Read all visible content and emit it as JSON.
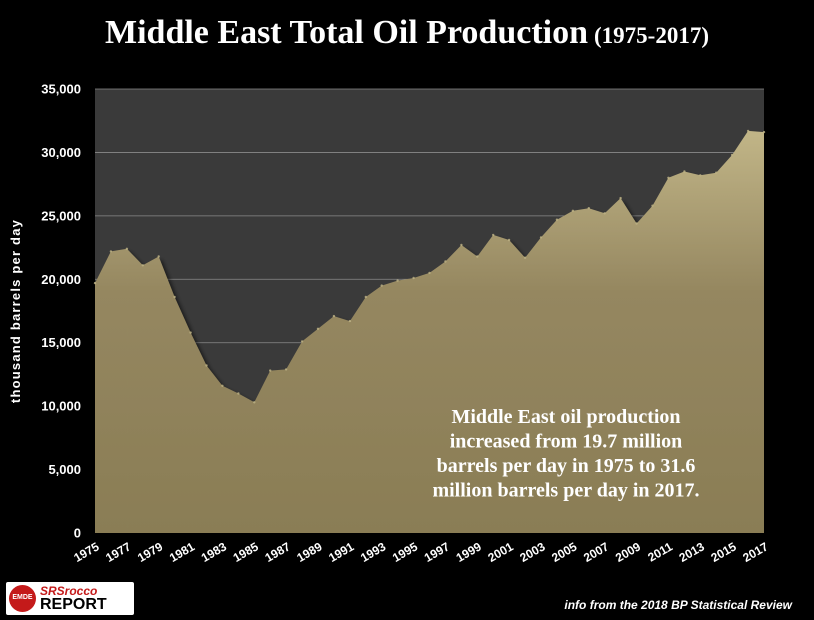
{
  "title": {
    "main": "Middle East Total Oil Production",
    "sub": "(1975-2017)"
  },
  "logo": {
    "badge": "EMDE",
    "top": "SRSrocco",
    "bottom": "REPORT"
  },
  "source_note": "info from the 2018 BP Statistical Review",
  "colors": {
    "background": "#000000",
    "plot_area": "#3a3a3a",
    "area_fill": "#8d8058",
    "area_top": "#c1b587",
    "gridline": "#8a8a8a"
  },
  "chart_data": {
    "type": "area",
    "title": "Middle East Total Oil Production",
    "ylabel": "thousand barrels per day",
    "xlabel": "",
    "ylim": [
      0,
      35000
    ],
    "yticks": [
      0,
      5000,
      10000,
      15000,
      20000,
      25000,
      30000,
      35000
    ],
    "ytick_labels": [
      "0",
      "5,000",
      "10,000",
      "15,000",
      "20,000",
      "25,000",
      "30,000",
      "35,000"
    ],
    "xtick_labels": [
      "1975",
      "1977",
      "1979",
      "1981",
      "1983",
      "1985",
      "1987",
      "1989",
      "1991",
      "1993",
      "1995",
      "1997",
      "1999",
      "2001",
      "2003",
      "2005",
      "2007",
      "2009",
      "2011",
      "2013",
      "2015",
      "2017"
    ],
    "grid": true,
    "annotation": [
      "Middle East oil production",
      "increased from 19.7 million",
      "barrels per day in 1975 to 31.6",
      "million barrels per day in 2017."
    ],
    "x": [
      1975,
      1976,
      1977,
      1978,
      1979,
      1980,
      1981,
      1982,
      1983,
      1984,
      1985,
      1986,
      1987,
      1988,
      1989,
      1990,
      1991,
      1992,
      1993,
      1994,
      1995,
      1996,
      1997,
      1998,
      1999,
      2000,
      2001,
      2002,
      2003,
      2004,
      2005,
      2006,
      2007,
      2008,
      2009,
      2010,
      2011,
      2012,
      2013,
      2014,
      2015,
      2016,
      2017
    ],
    "values": [
      19700,
      22200,
      22400,
      21100,
      21800,
      18600,
      15800,
      13200,
      11600,
      11000,
      10300,
      12800,
      12900,
      15100,
      16100,
      17100,
      16700,
      18600,
      19500,
      19900,
      20100,
      20500,
      21400,
      22700,
      21800,
      23500,
      23100,
      21700,
      23300,
      24700,
      25400,
      25600,
      25200,
      26400,
      24400,
      25800,
      28000,
      28500,
      28200,
      28400,
      29800,
      31700,
      31600
    ]
  }
}
